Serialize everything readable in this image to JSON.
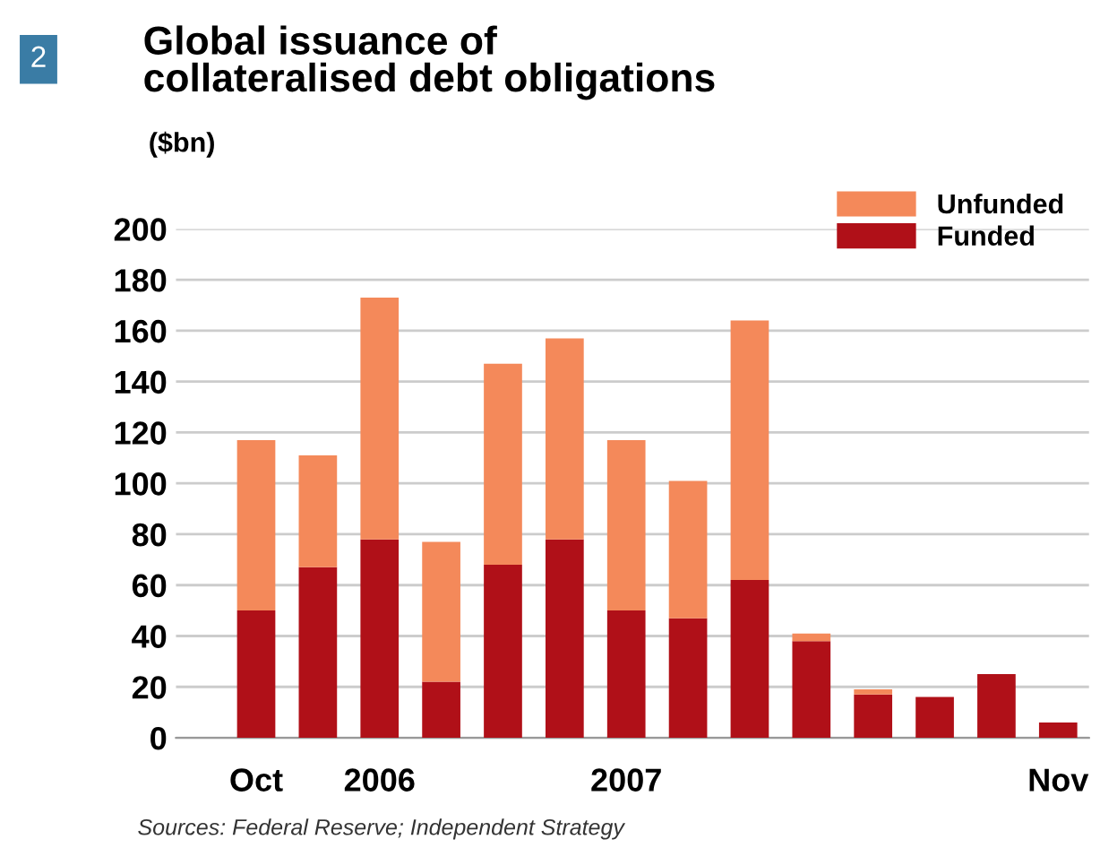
{
  "chart_data": {
    "type": "bar",
    "title": "Global issuance of\ncollateralised debt obligations",
    "subtitle": "($bn)",
    "categories": [
      "Oct",
      null,
      "2006",
      null,
      null,
      null,
      "2007",
      null,
      null,
      null,
      null,
      null,
      null,
      "Nov"
    ],
    "series": [
      {
        "name": "Funded",
        "color": "#b01018",
        "values": [
          50,
          67,
          78,
          22,
          68,
          78,
          50,
          47,
          62,
          38,
          17,
          16,
          25,
          6
        ]
      },
      {
        "name": "Unfunded",
        "color": "#f4895a",
        "values": [
          67,
          44,
          95,
          55,
          79,
          79,
          67,
          54,
          102,
          3,
          2,
          null,
          null,
          null
        ]
      }
    ],
    "stacked": true,
    "ylim": [
      0,
      200
    ],
    "yticks": [
      0,
      20,
      40,
      60,
      80,
      100,
      120,
      140,
      160,
      180,
      200
    ],
    "grid": "y",
    "legend": "top right",
    "annotations": [
      "2",
      "Sources: Federal Reserve; Independent Strategy"
    ]
  }
}
